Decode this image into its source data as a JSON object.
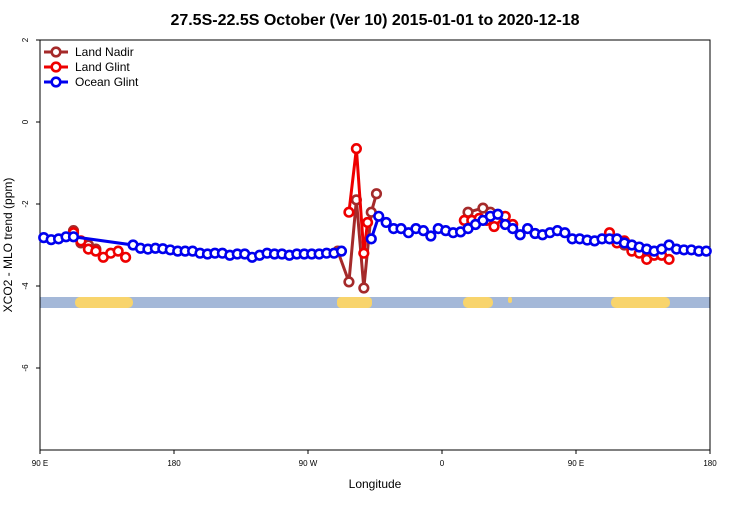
{
  "chart_data": {
    "type": "line",
    "title": "27.5S-22.5S October (Ver 10)   2015-01-01 to 2020-12-18",
    "xlabel": "Longitude",
    "ylabel": "XCO2 - MLO trend (ppm)",
    "xlim": [
      90,
      540
    ],
    "xticks": [
      {
        "value": 90,
        "label": "90 E"
      },
      {
        "value": 180,
        "label": "180"
      },
      {
        "value": 270,
        "label": "90 W"
      },
      {
        "value": 360,
        "label": "0"
      },
      {
        "value": 450,
        "label": "90 E"
      },
      {
        "value": 540,
        "label": "180"
      }
    ],
    "ylim": [
      -8,
      2
    ],
    "yticks": [
      2,
      0,
      -2,
      -4,
      -6
    ],
    "legend": "top-left",
    "series": [
      {
        "name": "Land Nadir",
        "color": "#a52a2a",
        "x": [
          112.5,
          117.5,
          122.5,
          127.5,
          null,
          290,
          297.5,
          302.5,
          307.5,
          312.5,
          316,
          null,
          377.5,
          387.5,
          392.5,
          null,
          482.5,
          487.5,
          492.5
        ],
        "values": [
          -2.65,
          -2.95,
          -3.0,
          -3.1,
          null,
          -3.15,
          -3.9,
          -1.9,
          -4.05,
          -2.2,
          -1.75,
          null,
          -2.2,
          -2.1,
          -2.2,
          null,
          -3.0,
          -3.05,
          -3.15
        ]
      },
      {
        "name": "Land Glint",
        "color": "#ee0000",
        "x": [
          112.5,
          117.5,
          122.5,
          127.5,
          132.5,
          137.5,
          142.5,
          147.5,
          null,
          297.5,
          302.5,
          307.5,
          310,
          null,
          375,
          380,
          385,
          390,
          395,
          402.5,
          407.5,
          null,
          472.5,
          477.5,
          482.5,
          487.5,
          492.5,
          497.5,
          502.5,
          507.5,
          512.5
        ],
        "values": [
          -2.7,
          -2.9,
          -3.1,
          -3.15,
          -3.3,
          -3.2,
          -3.15,
          -3.3,
          null,
          -2.2,
          -0.65,
          -3.2,
          -2.45,
          null,
          -2.4,
          -2.4,
          -2.35,
          -2.4,
          -2.55,
          -2.3,
          -2.5,
          null,
          -2.7,
          -2.95,
          -2.9,
          -3.15,
          -3.2,
          -3.35,
          -3.25,
          -3.25,
          -3.35
        ]
      },
      {
        "name": "Ocean Glint",
        "color": "#0000ee",
        "x": [
          92.5,
          97.5,
          102.5,
          107.5,
          112.5,
          152.5,
          157.5,
          162.5,
          167.5,
          172.5,
          177.5,
          182.5,
          187.5,
          192.5,
          197.5,
          202.5,
          207.5,
          212.5,
          217.5,
          222.5,
          227.5,
          232.5,
          237.5,
          242.5,
          247.5,
          252.5,
          257.5,
          262.5,
          267.5,
          272.5,
          277.5,
          282.5,
          287.5,
          292.5,
          null,
          312.5,
          317.5,
          322.5,
          327.5,
          332.5,
          337.5,
          342.5,
          347.5,
          352.5,
          357.5,
          362.5,
          367.5,
          372.5,
          377.5,
          382.5,
          387.5,
          392.5,
          397.5,
          402.5,
          407.5,
          412.5,
          417.5,
          422.5,
          427.5,
          432.5,
          437.5,
          442.5,
          447.5,
          452.5,
          457.5,
          462.5,
          467.5,
          472.5,
          477.5,
          482.5,
          487.5,
          492.5,
          497.5,
          502.5,
          507.5,
          512.5,
          517.5,
          522.5,
          527.5,
          532.5,
          537.5
        ],
        "values": [
          -2.82,
          -2.87,
          -2.85,
          -2.8,
          -2.8,
          -3.0,
          -3.08,
          -3.1,
          -3.08,
          -3.09,
          -3.12,
          -3.15,
          -3.15,
          -3.15,
          -3.2,
          -3.22,
          -3.2,
          -3.2,
          -3.25,
          -3.22,
          -3.22,
          -3.3,
          -3.25,
          -3.2,
          -3.22,
          -3.22,
          -3.25,
          -3.22,
          -3.22,
          -3.22,
          -3.22,
          -3.2,
          -3.2,
          -3.15,
          null,
          -2.85,
          -2.3,
          -2.45,
          -2.6,
          -2.6,
          -2.7,
          -2.6,
          -2.65,
          -2.78,
          -2.6,
          -2.65,
          -2.7,
          -2.68,
          -2.6,
          -2.5,
          -2.4,
          -2.3,
          -2.25,
          -2.5,
          -2.6,
          -2.75,
          -2.6,
          -2.72,
          -2.75,
          -2.7,
          -2.65,
          -2.7,
          -2.85,
          -2.85,
          -2.88,
          -2.9,
          -2.85,
          -2.85,
          -2.85,
          -2.95,
          -3.0,
          -3.05,
          -3.1,
          -3.15,
          -3.1,
          -3.0,
          -3.1,
          -3.12,
          -3.12,
          -3.15,
          -3.15
        ]
      }
    ]
  }
}
